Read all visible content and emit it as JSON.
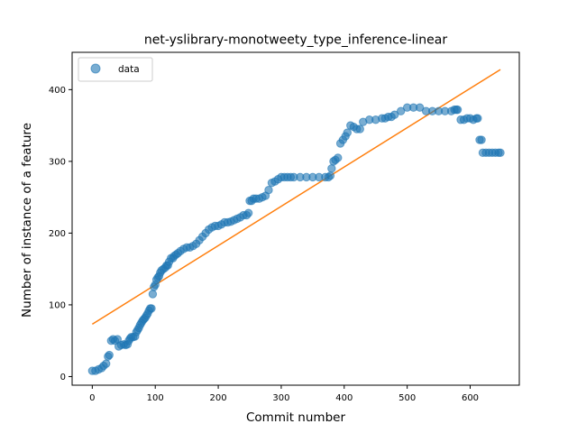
{
  "chart_data": {
    "type": "scatter",
    "title": "net-yslibrary-monotweety_type_inference-linear",
    "xlabel": "Commit number",
    "ylabel": "Number of instance of a feature",
    "xlim": [
      -32,
      678
    ],
    "ylim": [
      -12,
      452
    ],
    "xticks": [
      0,
      100,
      200,
      300,
      400,
      500,
      600
    ],
    "yticks": [
      0,
      100,
      200,
      300,
      400
    ],
    "legend": {
      "position": "top-left",
      "entries": [
        "data"
      ]
    },
    "grid": false,
    "colors": {
      "data": "#1f77b4",
      "fit": "#ff7f0e"
    },
    "series": [
      {
        "name": "data",
        "kind": "points",
        "x": [
          0,
          5,
          10,
          15,
          18,
          22,
          25,
          27,
          30,
          33,
          36,
          40,
          42,
          46,
          50,
          53,
          56,
          58,
          60,
          62,
          65,
          68,
          70,
          72,
          74,
          76,
          78,
          80,
          82,
          84,
          86,
          88,
          90,
          92,
          94,
          96,
          98,
          100,
          102,
          104,
          106,
          108,
          110,
          113,
          116,
          118,
          120,
          122,
          125,
          128,
          130,
          133,
          136,
          140,
          145,
          150,
          155,
          160,
          165,
          170,
          175,
          180,
          185,
          190,
          195,
          200,
          205,
          210,
          215,
          220,
          225,
          230,
          235,
          240,
          245,
          248,
          250,
          253,
          256,
          260,
          265,
          270,
          275,
          280,
          285,
          290,
          295,
          300,
          305,
          310,
          315,
          320,
          330,
          340,
          350,
          360,
          370,
          375,
          378,
          380,
          383,
          386,
          390,
          394,
          398,
          402,
          405,
          410,
          415,
          420,
          425,
          430,
          440,
          450,
          460,
          465,
          470,
          475,
          480,
          490,
          500,
          510,
          520,
          530,
          540,
          550,
          560,
          570,
          575,
          578,
          580,
          585,
          590,
          595,
          600,
          605,
          610,
          612,
          615,
          618,
          620,
          625,
          630,
          635,
          640,
          645,
          648
        ],
        "y": [
          8,
          8,
          10,
          12,
          15,
          18,
          28,
          30,
          50,
          52,
          50,
          52,
          42,
          44,
          45,
          44,
          45,
          50,
          53,
          55,
          55,
          56,
          62,
          65,
          68,
          72,
          75,
          78,
          80,
          82,
          85,
          88,
          92,
          95,
          95,
          115,
          125,
          128,
          135,
          138,
          140,
          145,
          148,
          150,
          152,
          155,
          155,
          160,
          165,
          165,
          168,
          170,
          172,
          175,
          178,
          180,
          180,
          182,
          185,
          190,
          195,
          200,
          205,
          208,
          210,
          210,
          212,
          215,
          215,
          216,
          218,
          220,
          222,
          225,
          225,
          228,
          245,
          245,
          248,
          248,
          248,
          250,
          252,
          260,
          270,
          272,
          275,
          278,
          278,
          278,
          278,
          278,
          278,
          278,
          278,
          278,
          278,
          278,
          280,
          290,
          300,
          302,
          305,
          325,
          330,
          335,
          340,
          350,
          348,
          345,
          345,
          355,
          358,
          358,
          360,
          360,
          362,
          362,
          365,
          370,
          375,
          375,
          375,
          370,
          370,
          370,
          370,
          370,
          372,
          372,
          372,
          358,
          358,
          360,
          360,
          358,
          360,
          360,
          330,
          330,
          312,
          312,
          312,
          312,
          312,
          312,
          312
        ]
      },
      {
        "name": "",
        "kind": "line",
        "x": [
          0,
          648
        ],
        "y": [
          73,
          428
        ]
      }
    ]
  }
}
